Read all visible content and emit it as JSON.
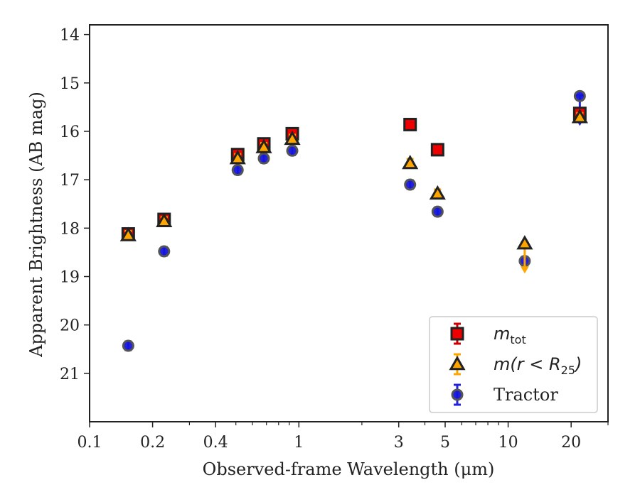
{
  "chart_data": {
    "type": "scatter",
    "xlabel": "Observed-frame Wavelength (μm)",
    "ylabel": "Apparent Brightness (AB mag)",
    "xscale": "log",
    "xlim": [
      0.1,
      30
    ],
    "ylim": [
      22.0,
      13.8
    ],
    "y_inverted": true,
    "x_ticks": [
      {
        "value": 0.1,
        "label": "0.1"
      },
      {
        "value": 0.2,
        "label": "0.2"
      },
      {
        "value": 0.4,
        "label": "0.4"
      },
      {
        "value": 1,
        "label": "1"
      },
      {
        "value": 3,
        "label": "3"
      },
      {
        "value": 5,
        "label": "5"
      },
      {
        "value": 10,
        "label": "10"
      },
      {
        "value": 20,
        "label": "20"
      }
    ],
    "y_ticks": [
      {
        "value": 14,
        "label": "14"
      },
      {
        "value": 15,
        "label": "15"
      },
      {
        "value": 16,
        "label": "16"
      },
      {
        "value": 17,
        "label": "17"
      },
      {
        "value": 18,
        "label": "18"
      },
      {
        "value": 19,
        "label": "19"
      },
      {
        "value": 20,
        "label": "20"
      },
      {
        "value": 21,
        "label": "21"
      }
    ],
    "grid": false,
    "legend_position": "bottom-right",
    "series": [
      {
        "name_main": "m",
        "name_sub": "tot",
        "marker": "square",
        "fill": "#ee0000",
        "errcolor": "#cc0000",
        "points": [
          {
            "x": 0.153,
            "y": 18.12
          },
          {
            "x": 0.227,
            "y": 17.82
          },
          {
            "x": 0.51,
            "y": 16.48
          },
          {
            "x": 0.68,
            "y": 16.26
          },
          {
            "x": 0.93,
            "y": 16.05
          },
          {
            "x": 3.4,
            "y": 15.86
          },
          {
            "x": 4.6,
            "y": 16.38
          },
          {
            "x": 22.0,
            "y": 15.63
          }
        ]
      },
      {
        "name_main": "m(r < R",
        "name_sub": "25",
        "name_end": ")",
        "marker": "triangle",
        "fill": "#ffa500",
        "errcolor": "#ffa500",
        "points": [
          {
            "x": 0.153,
            "y": 18.15
          },
          {
            "x": 0.227,
            "y": 17.86
          },
          {
            "x": 0.51,
            "y": 16.56
          },
          {
            "x": 0.68,
            "y": 16.33
          },
          {
            "x": 0.93,
            "y": 16.16
          },
          {
            "x": 3.4,
            "y": 16.66
          },
          {
            "x": 4.6,
            "y": 17.29
          },
          {
            "x": 12.0,
            "y": 18.32,
            "upper_limit": true
          },
          {
            "x": 22.0,
            "y": 15.71
          }
        ]
      },
      {
        "name": "Tractor",
        "marker": "circle",
        "fill": "#1515dd",
        "errcolor": "#2222dd",
        "points": [
          {
            "x": 0.153,
            "y": 20.43
          },
          {
            "x": 0.227,
            "y": 18.48
          },
          {
            "x": 0.51,
            "y": 16.8
          },
          {
            "x": 0.68,
            "y": 16.56
          },
          {
            "x": 0.93,
            "y": 16.4
          },
          {
            "x": 3.4,
            "y": 17.1
          },
          {
            "x": 4.6,
            "y": 17.66
          },
          {
            "x": 12.0,
            "y": 18.68
          },
          {
            "x": 22.0,
            "y": 15.27,
            "upper_limit": true
          }
        ]
      }
    ]
  }
}
